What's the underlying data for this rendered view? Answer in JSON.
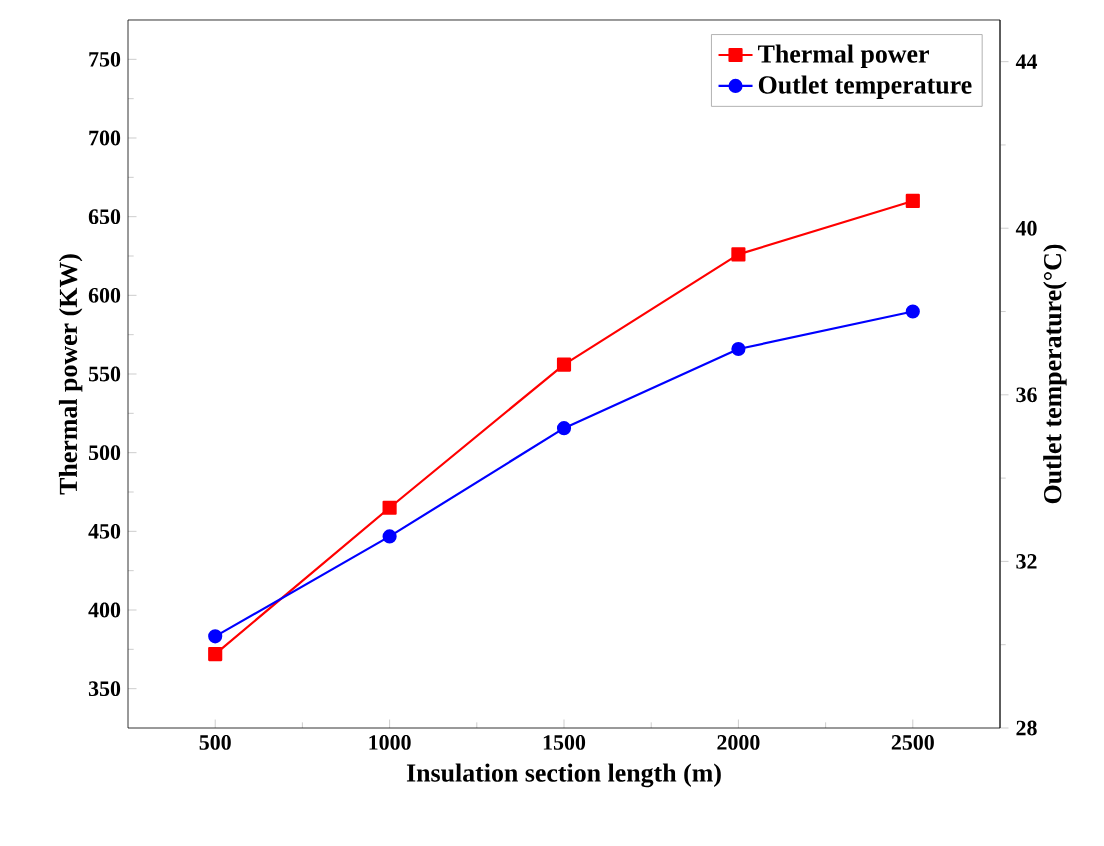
{
  "chart_data": {
    "type": "line",
    "xlabel": "Insulation section length (m)",
    "ylabel": "Thermal power (KW)",
    "y2label": "Outlet temperature(°C)",
    "x": [
      500,
      1000,
      1500,
      2000,
      2500
    ],
    "series": [
      {
        "name": "Thermal power",
        "color": "#ff0000",
        "marker": "square",
        "values": [
          372,
          465,
          556,
          626,
          660
        ]
      },
      {
        "name": "Outlet temperature",
        "color": "#0000ff",
        "marker": "circle",
        "axis": "y2",
        "values": [
          30.2,
          32.6,
          35.2,
          37.1,
          38.0
        ]
      }
    ],
    "xlim": [
      250,
      2750
    ],
    "xticks": [
      500,
      1000,
      1500,
      2000,
      2500
    ],
    "ylim": [
      325,
      775
    ],
    "yticks": [
      350,
      400,
      450,
      500,
      550,
      600,
      650,
      700,
      750
    ],
    "y2lim": [
      28,
      45
    ],
    "y2ticks": [
      28,
      32,
      36,
      40,
      44
    ],
    "legend": "top right",
    "grid": false,
    "line_style": "solid"
  }
}
